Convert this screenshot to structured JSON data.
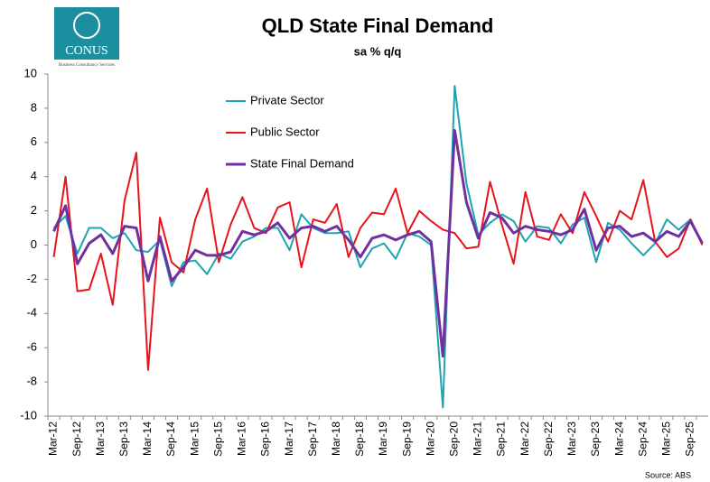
{
  "chart_data": {
    "type": "line",
    "title": "QLD State Final Demand",
    "subtitle": "sa % q/q",
    "source": "Source: ABS",
    "logo": {
      "name": "CONUS",
      "tagline": "Business Consultancy Services"
    },
    "categories": [
      "Mar-12",
      null,
      "Sep-12",
      null,
      "Mar-13",
      null,
      "Sep-13",
      null,
      "Mar-14",
      null,
      "Sep-14",
      null,
      "Mar-15",
      null,
      "Sep-15",
      null,
      "Mar-16",
      null,
      "Sep-16",
      null,
      "Mar-17",
      null,
      "Sep-17",
      null,
      "Mar-18",
      null,
      "Sep-18",
      null,
      "Mar-19",
      null,
      "Sep-19",
      null,
      "Mar-20",
      null,
      "Sep-20",
      null,
      "Mar-21",
      null,
      "Sep-21",
      null,
      "Mar-22",
      null,
      "Sep-22",
      null,
      "Mar-23",
      null,
      "Sep-23",
      null,
      "Mar-24",
      null,
      "Sep-24",
      null,
      "Mar-25",
      null,
      "Sep-25",
      null
    ],
    "series": [
      {
        "name": "Private Sector",
        "color": "#1fa3b0",
        "values": [
          1.0,
          1.7,
          -0.5,
          1.0,
          1.0,
          0.4,
          0.7,
          -0.3,
          -0.4,
          0.3,
          -2.4,
          -1.0,
          -0.9,
          -1.7,
          -0.5,
          -0.8,
          0.2,
          0.5,
          1.0,
          1.0,
          -0.3,
          1.8,
          1.0,
          0.7,
          0.7,
          0.8,
          -1.3,
          -0.2,
          0.1,
          -0.8,
          0.7,
          0.5,
          0.0,
          -9.5,
          9.3,
          3.6,
          0.6,
          1.3,
          1.8,
          1.4,
          0.2,
          1.1,
          1.0,
          0.1,
          1.2,
          1.6,
          -1.0,
          1.3,
          0.9,
          0.1,
          -0.6,
          0.1,
          1.5,
          0.9,
          1.5,
          0.1
        ]
      },
      {
        "name": "Public Sector",
        "color": "#e8141b",
        "values": [
          -0.7,
          4.0,
          -2.7,
          -2.6,
          -0.5,
          -3.5,
          2.6,
          5.4,
          -7.3,
          1.6,
          -1.0,
          -1.6,
          1.5,
          3.3,
          -1.0,
          1.2,
          2.8,
          1.0,
          0.7,
          2.2,
          2.5,
          -1.3,
          1.5,
          1.3,
          2.4,
          -0.7,
          1.0,
          1.9,
          1.8,
          3.3,
          0.7,
          2.0,
          1.4,
          0.9,
          0.7,
          -0.2,
          -0.1,
          3.7,
          1.2,
          -1.1,
          3.1,
          0.5,
          0.3,
          1.8,
          0.7,
          3.1,
          1.7,
          0.2,
          2.0,
          1.5,
          3.8,
          0.2,
          -0.7,
          -0.2,
          1.5,
          0.0
        ]
      },
      {
        "name": "State Final Demand",
        "color": "#7030a0",
        "values": [
          0.8,
          2.3,
          -1.1,
          0.1,
          0.6,
          -0.5,
          1.1,
          1.0,
          -2.1,
          0.5,
          -2.1,
          -1.3,
          -0.3,
          -0.6,
          -0.6,
          -0.4,
          0.8,
          0.6,
          0.8,
          1.3,
          0.4,
          1.0,
          1.1,
          0.8,
          1.1,
          0.3,
          -0.7,
          0.4,
          0.6,
          0.3,
          0.6,
          0.8,
          0.2,
          -6.5,
          6.7,
          2.5,
          0.4,
          1.9,
          1.6,
          0.7,
          1.1,
          0.9,
          0.8,
          0.6,
          0.9,
          2.1,
          -0.3,
          1.0,
          1.1,
          0.5,
          0.7,
          0.2,
          0.8,
          0.5,
          1.4,
          0.1
        ]
      }
    ],
    "ylim": [
      -10,
      10
    ],
    "yticks": [
      -10,
      -8,
      -6,
      -4,
      -2,
      0,
      2,
      4,
      6,
      8,
      10
    ],
    "grid": false
  }
}
